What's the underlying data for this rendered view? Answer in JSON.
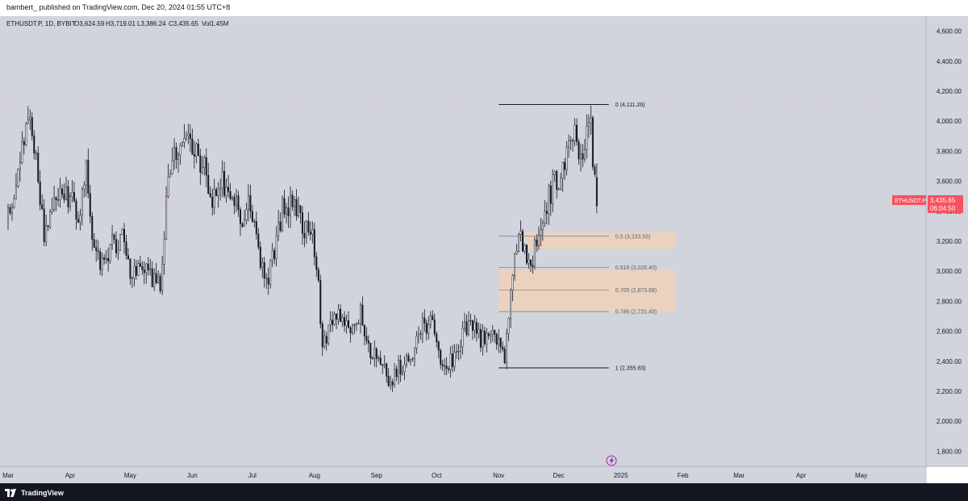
{
  "header": {
    "publisher_line": "bambert_ published on TradingView.com, Dec 20, 2024 01:55 UTC+8"
  },
  "footer": {
    "brand": "TradingView"
  },
  "colors": {
    "background": "#d1d4dc",
    "candle": "#131722",
    "zone": "#f2d2b4",
    "price_label": "#f7525f",
    "fib_line": "#131722",
    "fib_line_light": "#787b86",
    "dotted_line": "#f7a98f"
  },
  "chart_data": {
    "type": "candlestick",
    "symbol_line": {
      "symbol": "ETHUSDT.P, 1D, BYBIT",
      "open": "O3,624.59",
      "high": "H3,719.01",
      "low": "L3,386.24",
      "close": "C3,435.65",
      "volume": "Vol1.45M"
    },
    "ylim": [
      1700,
      4700
    ],
    "y_ticks": [
      {
        "value": 1800,
        "label": "1,800.00"
      },
      {
        "value": 2000,
        "label": "2,000.00"
      },
      {
        "value": 2200,
        "label": "2,200.00"
      },
      {
        "value": 2400,
        "label": "2,400.00"
      },
      {
        "value": 2600,
        "label": "2,600.00"
      },
      {
        "value": 2800,
        "label": "2,800.00"
      },
      {
        "value": 3000,
        "label": "3,000.00"
      },
      {
        "value": 3200,
        "label": "3,200.00"
      },
      {
        "value": 3400,
        "label": "3,400.00"
      },
      {
        "value": 3600,
        "label": "3,600.00"
      },
      {
        "value": 3800,
        "label": "3,800.00"
      },
      {
        "value": 4000,
        "label": "4,000.00"
      },
      {
        "value": 4200,
        "label": "4,200.00"
      },
      {
        "value": 4400,
        "label": "4,400.00"
      },
      {
        "value": 4600,
        "label": "4,600.00"
      }
    ],
    "x_ticks": [
      {
        "date": "2024-03-01",
        "label": "Mar"
      },
      {
        "date": "2024-04-01",
        "label": "Apr"
      },
      {
        "date": "2024-05-01",
        "label": "May"
      },
      {
        "date": "2024-06-01",
        "label": "Jun"
      },
      {
        "date": "2024-07-01",
        "label": "Jul"
      },
      {
        "date": "2024-08-01",
        "label": "Aug"
      },
      {
        "date": "2024-09-01",
        "label": "Sep"
      },
      {
        "date": "2024-10-01",
        "label": "Oct"
      },
      {
        "date": "2024-11-01",
        "label": "Nov"
      },
      {
        "date": "2024-12-01",
        "label": "Dec"
      },
      {
        "date": "2025-01-01",
        "label": "2025"
      },
      {
        "date": "2025-02-01",
        "label": "Feb"
      },
      {
        "date": "2025-03-01",
        "label": "Mar"
      },
      {
        "date": "2025-04-01",
        "label": "Apr"
      },
      {
        "date": "2025-05-01",
        "label": "May"
      }
    ],
    "x_range": [
      "2024-03-01",
      "2025-05-31"
    ],
    "price_waypoints": [
      [
        "2024-03-01",
        3350
      ],
      [
        "2024-03-04",
        3500
      ],
      [
        "2024-03-08",
        3900
      ],
      [
        "2024-03-12",
        4050
      ],
      [
        "2024-03-16",
        3650
      ],
      [
        "2024-03-19",
        3200
      ],
      [
        "2024-03-22",
        3450
      ],
      [
        "2024-03-27",
        3550
      ],
      [
        "2024-04-01",
        3500
      ],
      [
        "2024-04-05",
        3300
      ],
      [
        "2024-04-09",
        3650
      ],
      [
        "2024-04-13",
        3100
      ],
      [
        "2024-04-18",
        3050
      ],
      [
        "2024-04-23",
        3200
      ],
      [
        "2024-04-28",
        3200
      ],
      [
        "2024-05-01",
        2950
      ],
      [
        "2024-05-06",
        3100
      ],
      [
        "2024-05-12",
        2950
      ],
      [
        "2024-05-16",
        2900
      ],
      [
        "2024-05-20",
        3650
      ],
      [
        "2024-05-24",
        3800
      ],
      [
        "2024-05-27",
        3900
      ],
      [
        "2024-06-03",
        3800
      ],
      [
        "2024-06-07",
        3700
      ],
      [
        "2024-06-11",
        3500
      ],
      [
        "2024-06-16",
        3600
      ],
      [
        "2024-06-21",
        3500
      ],
      [
        "2024-06-25",
        3350
      ],
      [
        "2024-06-30",
        3450
      ],
      [
        "2024-07-04",
        3100
      ],
      [
        "2024-07-08",
        2950
      ],
      [
        "2024-07-12",
        3100
      ],
      [
        "2024-07-16",
        3400
      ],
      [
        "2024-07-22",
        3500
      ],
      [
        "2024-07-26",
        3300
      ],
      [
        "2024-07-31",
        3250
      ],
      [
        "2024-08-03",
        2900
      ],
      [
        "2024-08-05",
        2450
      ],
      [
        "2024-08-08",
        2650
      ],
      [
        "2024-08-13",
        2700
      ],
      [
        "2024-08-20",
        2600
      ],
      [
        "2024-08-24",
        2750
      ],
      [
        "2024-08-28",
        2500
      ],
      [
        "2024-09-03",
        2400
      ],
      [
        "2024-09-07",
        2250
      ],
      [
        "2024-09-12",
        2350
      ],
      [
        "2024-09-19",
        2450
      ],
      [
        "2024-09-24",
        2650
      ],
      [
        "2024-09-29",
        2650
      ],
      [
        "2024-10-03",
        2400
      ],
      [
        "2024-10-10",
        2400
      ],
      [
        "2024-10-15",
        2600
      ],
      [
        "2024-10-19",
        2650
      ],
      [
        "2024-10-23",
        2550
      ],
      [
        "2024-10-28",
        2600
      ],
      [
        "2024-11-01",
        2500
      ],
      [
        "2024-11-04",
        2400
      ],
      [
        "2024-11-07",
        2900
      ],
      [
        "2024-11-10",
        3200
      ],
      [
        "2024-11-12",
        3300
      ],
      [
        "2024-11-14",
        3100
      ],
      [
        "2024-11-18",
        3100
      ],
      [
        "2024-11-22",
        3350
      ],
      [
        "2024-11-25",
        3450
      ],
      [
        "2024-11-29",
        3600
      ],
      [
        "2024-12-03",
        3650
      ],
      [
        "2024-12-06",
        3950
      ],
      [
        "2024-12-09",
        3950
      ],
      [
        "2024-12-12",
        3700
      ],
      [
        "2024-12-15",
        3900
      ],
      [
        "2024-12-17",
        3950
      ],
      [
        "2024-12-18",
        3700
      ],
      [
        "2024-12-19",
        3624.59
      ]
    ],
    "last_candle": {
      "date": "2024-12-20",
      "open": 3624.59,
      "high": 3719.01,
      "low": 3386.24,
      "close": 3435.65
    },
    "horizontal_lines": [
      {
        "value": 4100,
        "style": "dotted"
      },
      {
        "value": 3435.65,
        "style": "dotted"
      }
    ],
    "fibonacci": {
      "from": "2024-11-01",
      "to": "2024-12-26",
      "levels": [
        {
          "label": "0 (4,111.26)",
          "value": 4111.26,
          "emphasis": true
        },
        {
          "label": "0.5 (3,233.55)",
          "value": 3233.55,
          "emphasis": false
        },
        {
          "label": "0.618 (3,026.40)",
          "value": 3026.4,
          "emphasis": false
        },
        {
          "label": "0.705 (2,873.68)",
          "value": 2873.68,
          "emphasis": false
        },
        {
          "label": "0.786 (2,731.49)",
          "value": 2731.49,
          "emphasis": false
        },
        {
          "label": "1 (2,355.83)",
          "value": 2355.83,
          "emphasis": true
        }
      ]
    },
    "zones": [
      {
        "from": "2024-11-14",
        "to": "2025-01-28",
        "low": 3150,
        "high": 3260
      },
      {
        "from": "2024-11-01",
        "to": "2025-01-28",
        "low": 2730,
        "high": 3010
      }
    ],
    "price_label": {
      "price": "3,435.65",
      "countdown": "06:04:50",
      "symbol": "ETHUSDT.P"
    }
  }
}
